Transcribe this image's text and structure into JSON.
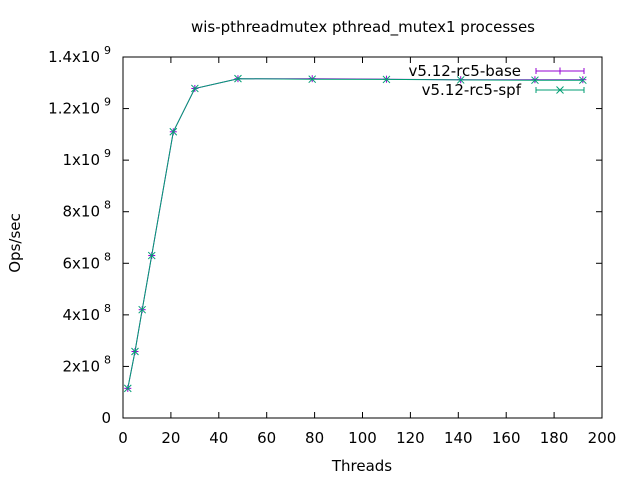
{
  "chart_data": {
    "type": "line",
    "title": "wis-pthreadmutex pthread_mutex1 processes",
    "xlabel": "Threads",
    "ylabel": "Ops/sec",
    "xlim": [
      0,
      200
    ],
    "ylim": [
      0,
      1400000000
    ],
    "x_ticks": [
      0,
      20,
      40,
      60,
      80,
      100,
      120,
      140,
      160,
      180,
      200
    ],
    "y_ticks": [
      {
        "value": 0,
        "label": "0",
        "exp": ""
      },
      {
        "value": 200000000,
        "label": "2x10",
        "exp": "8"
      },
      {
        "value": 400000000,
        "label": "4x10",
        "exp": "8"
      },
      {
        "value": 600000000,
        "label": "6x10",
        "exp": "8"
      },
      {
        "value": 800000000,
        "label": "8x10",
        "exp": "8"
      },
      {
        "value": 1000000000,
        "label": "1x10",
        "exp": "9"
      },
      {
        "value": 1200000000,
        "label": "1.2x10",
        "exp": "9"
      },
      {
        "value": 1400000000,
        "label": "1.4x10",
        "exp": "9"
      }
    ],
    "legend_position": "top-right",
    "series": [
      {
        "name": "v5.12-rc5-base",
        "color": "#9400d3",
        "marker": "plus",
        "x": [
          2,
          5,
          8,
          12,
          21,
          30,
          48,
          79,
          110,
          141,
          172,
          192
        ],
        "y": [
          115000000,
          258000000,
          420000000,
          630000000,
          1110000000,
          1278000000,
          1316000000,
          1316000000,
          1314000000,
          1312000000,
          1312000000,
          1312000000
        ]
      },
      {
        "name": "v5.12-rc5-spf",
        "color": "#009e73",
        "marker": "x",
        "x": [
          2,
          5,
          8,
          12,
          21,
          30,
          48,
          79,
          110,
          141,
          172,
          192
        ],
        "y": [
          115000000,
          258000000,
          420000000,
          630000000,
          1110000000,
          1278000000,
          1316000000,
          1314000000,
          1313000000,
          1311000000,
          1310000000,
          1310000000
        ]
      }
    ]
  }
}
